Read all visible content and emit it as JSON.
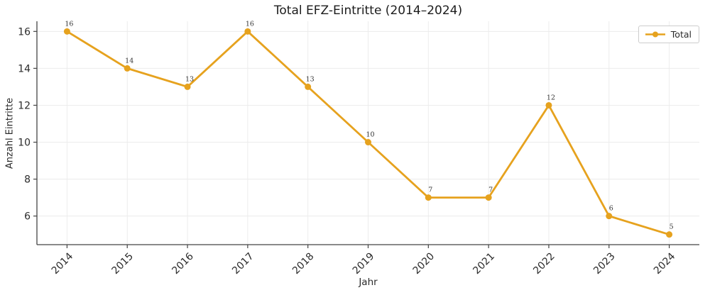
{
  "figure": {
    "title": "Total EFZ-Eintritte (2014–2024)",
    "legend": {
      "label": "Total"
    }
  },
  "chart_data": {
    "type": "line",
    "title": "Total EFZ-Eintritte (2014–2024)",
    "xlabel": "Jahr",
    "ylabel": "Anzahl Eintritte",
    "x": [
      2014,
      2015,
      2016,
      2017,
      2018,
      2019,
      2020,
      2021,
      2022,
      2023,
      2024
    ],
    "series": [
      {
        "name": "Total",
        "values": [
          16,
          14,
          13,
          16,
          13,
          10,
          7,
          7,
          12,
          6,
          5
        ]
      }
    ],
    "point_labels": [
      "16",
      "14",
      "13",
      "16",
      "13",
      "10",
      "7",
      "7",
      "12",
      "6",
      "5"
    ],
    "yticks": [
      6,
      8,
      10,
      12,
      14,
      16
    ],
    "xlim": [
      2013.5,
      2024.5
    ],
    "ylim": [
      4.45,
      16.55
    ],
    "grid": true,
    "legend_position": "upper right",
    "x_tick_rotation": 45,
    "colors": {
      "line": "#E6A21E",
      "marker": "#E6A21E",
      "grid": "#ececec",
      "axis": "#444444",
      "tick_text": "#2b2b2b",
      "annotation": "#333333",
      "background": "#ffffff",
      "legend_border": "#cccccc"
    }
  }
}
